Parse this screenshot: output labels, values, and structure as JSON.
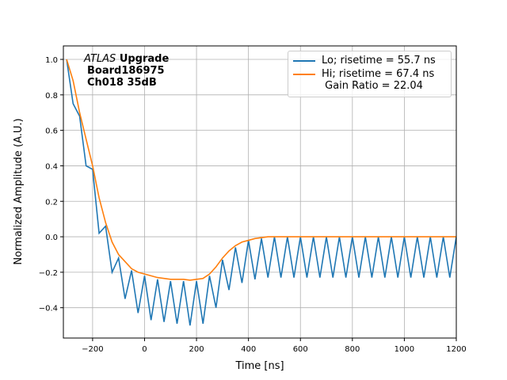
{
  "chart_data": {
    "type": "line",
    "xlabel": "Time [ns]",
    "ylabel": "Normalized Amplitude (A.U.)",
    "annotation": [
      "ATLAS",
      "Upgrade",
      "Board186975",
      "Ch018 35dB"
    ],
    "x": [
      -300,
      -275,
      -250,
      -225,
      -200,
      -175,
      -150,
      -125,
      -100,
      -75,
      -50,
      -25,
      0,
      25,
      50,
      75,
      100,
      125,
      150,
      175,
      200,
      225,
      250,
      275,
      300,
      325,
      350,
      375,
      400,
      425,
      450,
      475,
      500,
      525,
      550,
      575,
      600,
      625,
      650,
      675,
      700,
      725,
      750,
      775,
      800,
      825,
      850,
      875,
      900,
      925,
      950,
      975,
      1000,
      1025,
      1050,
      1075,
      1100,
      1125,
      1150,
      1175,
      1200
    ],
    "series": [
      {
        "name": "Lo; risetime = 55.7 ns",
        "color": "#1f77b4",
        "values": [
          1.0,
          0.75,
          0.68,
          0.4,
          0.38,
          0.02,
          0.06,
          -0.2,
          -0.12,
          -0.35,
          -0.19,
          -0.43,
          -0.22,
          -0.47,
          -0.24,
          -0.48,
          -0.25,
          -0.49,
          -0.25,
          -0.5,
          -0.25,
          -0.49,
          -0.22,
          -0.4,
          -0.13,
          -0.3,
          -0.06,
          -0.26,
          -0.02,
          -0.24,
          -0.01,
          -0.23,
          0.0,
          -0.23,
          0.0,
          -0.23,
          0.0,
          -0.23,
          0.0,
          -0.23,
          0.0,
          -0.23,
          0.0,
          -0.23,
          0.0,
          -0.23,
          0.0,
          -0.23,
          0.0,
          -0.23,
          0.0,
          -0.23,
          0.0,
          -0.23,
          0.0,
          -0.23,
          0.0,
          -0.23,
          0.0,
          -0.23,
          0.0
        ]
      },
      {
        "name": "Hi; risetime = 67.4 ns\n Gain Ratio = 22.04",
        "color": "#ff7f0e",
        "values": [
          1.0,
          0.88,
          0.7,
          0.55,
          0.4,
          0.22,
          0.08,
          -0.03,
          -0.1,
          -0.14,
          -0.18,
          -0.2,
          -0.21,
          -0.22,
          -0.23,
          -0.235,
          -0.24,
          -0.24,
          -0.24,
          -0.245,
          -0.24,
          -0.235,
          -0.21,
          -0.17,
          -0.12,
          -0.08,
          -0.05,
          -0.03,
          -0.02,
          -0.01,
          -0.005,
          0.0,
          0.0,
          0.0,
          0.0,
          0.0,
          0.0,
          0.0,
          0.0,
          0.0,
          0.0,
          0.0,
          0.0,
          0.0,
          0.0,
          0.0,
          0.0,
          0.0,
          0.0,
          0.0,
          0.0,
          0.0,
          0.0,
          0.0,
          0.0,
          0.0,
          0.0,
          0.0,
          0.0,
          0.0,
          0.0
        ]
      }
    ],
    "xlim": [
      -312.5,
      1200
    ],
    "ylim": [
      -0.571,
      1.076
    ],
    "xticks": [
      {
        "value": -200,
        "label": "−200"
      },
      0,
      200,
      400,
      600,
      800,
      1000,
      1200
    ],
    "yticks": [
      {
        "value": -0.4,
        "label": "−0.4"
      },
      {
        "value": -0.2,
        "label": "−0.2"
      },
      {
        "value": 0,
        "label": "0.0"
      },
      0.2,
      0.4,
      0.6,
      0.8,
      {
        "value": 1,
        "label": "1.0"
      }
    ],
    "grid": true,
    "legend": "upper right"
  }
}
